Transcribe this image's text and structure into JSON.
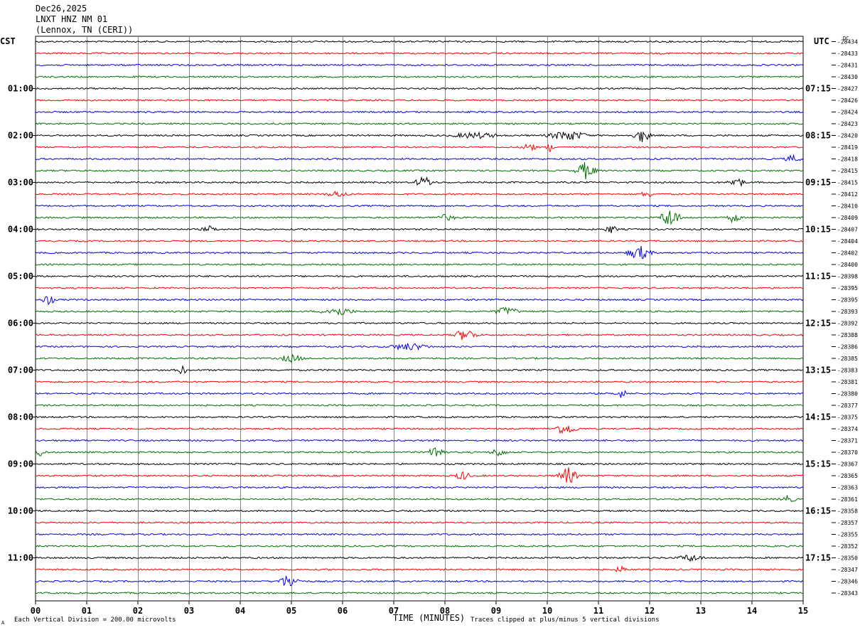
{
  "header": {
    "date": "Dec26,2025",
    "station": "LNXT HNZ NM 01",
    "location": "(Lennox, TN (CERI))"
  },
  "left_axis_label": "CST",
  "right_axis_label": "UTC",
  "dc_label": "DC",
  "footer": {
    "scale_note": "Each Vertical Division =  200.00 microvolts",
    "clip_note": "Traces clipped at plus/minus 5 vertical divisions",
    "corner_mark": "A"
  },
  "colors": {
    "trace_cycle": [
      "#000000",
      "#ff0000",
      "#0000ff",
      "#007000"
    ],
    "grid": "#888888",
    "frame": "#000000"
  },
  "chart_data": {
    "type": "line",
    "title": "LNXT HNZ NM 01",
    "xlabel": "TIME (MINUTES)",
    "xlim": [
      0,
      15
    ],
    "x_ticks": [
      "00",
      "01",
      "02",
      "03",
      "04",
      "05",
      "06",
      "07",
      "08",
      "09",
      "10",
      "11",
      "12",
      "13",
      "14",
      "15"
    ],
    "left_time_labels": [
      {
        "row": 4,
        "label": "01:00"
      },
      {
        "row": 8,
        "label": "02:00"
      },
      {
        "row": 12,
        "label": "03:00"
      },
      {
        "row": 16,
        "label": "04:00"
      },
      {
        "row": 20,
        "label": "05:00"
      },
      {
        "row": 24,
        "label": "06:00"
      },
      {
        "row": 28,
        "label": "07:00"
      },
      {
        "row": 32,
        "label": "08:00"
      },
      {
        "row": 36,
        "label": "09:00"
      },
      {
        "row": 40,
        "label": "10:00"
      },
      {
        "row": 44,
        "label": "11:00"
      }
    ],
    "right_time_labels": [
      {
        "row": 4,
        "label": "07:15"
      },
      {
        "row": 8,
        "label": "08:15"
      },
      {
        "row": 12,
        "label": "09:15"
      },
      {
        "row": 16,
        "label": "10:15"
      },
      {
        "row": 20,
        "label": "11:15"
      },
      {
        "row": 24,
        "label": "12:15"
      },
      {
        "row": 28,
        "label": "13:15"
      },
      {
        "row": 32,
        "label": "14:15"
      },
      {
        "row": 36,
        "label": "15:15"
      },
      {
        "row": 40,
        "label": "16:15"
      },
      {
        "row": 44,
        "label": "17:15"
      }
    ],
    "dc_offsets": [
      "-28434",
      "-28433",
      "-28431",
      "-28430",
      "-28427",
      "-28426",
      "-28424",
      "-28423",
      "-28420",
      "-28419",
      "-28418",
      "-28415",
      "-28415",
      "-28412",
      "-28410",
      "-28409",
      "-28407",
      "-28404",
      "-28402",
      "-28400",
      "-28398",
      "-28395",
      "-28395",
      "-28393",
      "-28392",
      "-28388",
      "-28386",
      "-28385",
      "-28383",
      "-28381",
      "-28380",
      "-28377",
      "-28375",
      "-28374",
      "-28371",
      "-28370",
      "-28367",
      "-28365",
      "-28363",
      "-28361",
      "-28358",
      "-28357",
      "-28355",
      "-28352",
      "-28350",
      "-28347",
      "-28346",
      "-28343"
    ],
    "events": [
      {
        "row": 8,
        "minute": 10.4,
        "amp": 7,
        "width": 0.5
      },
      {
        "row": 8,
        "minute": 11.85,
        "amp": 10,
        "width": 0.2
      },
      {
        "row": 8,
        "minute": 8.6,
        "amp": 4,
        "width": 0.6
      },
      {
        "row": 9,
        "minute": 9.65,
        "amp": 8,
        "width": 0.15
      },
      {
        "row": 9,
        "minute": 10.05,
        "amp": 6,
        "width": 0.1
      },
      {
        "row": 10,
        "minute": 14.8,
        "amp": 5,
        "width": 0.2
      },
      {
        "row": 11,
        "minute": 10.75,
        "amp": 12,
        "width": 0.25
      },
      {
        "row": 12,
        "minute": 7.6,
        "amp": 8,
        "width": 0.25
      },
      {
        "row": 12,
        "minute": 13.7,
        "amp": 8,
        "width": 0.2
      },
      {
        "row": 13,
        "minute": 5.9,
        "amp": 4,
        "width": 0.3
      },
      {
        "row": 13,
        "minute": 11.95,
        "amp": 5,
        "width": 0.15
      },
      {
        "row": 15,
        "minute": 12.4,
        "amp": 14,
        "width": 0.25
      },
      {
        "row": 15,
        "minute": 13.65,
        "amp": 8,
        "width": 0.15
      },
      {
        "row": 15,
        "minute": 8.0,
        "amp": 4,
        "width": 0.3
      },
      {
        "row": 16,
        "minute": 11.25,
        "amp": 6,
        "width": 0.15
      },
      {
        "row": 16,
        "minute": 3.4,
        "amp": 4,
        "width": 0.2
      },
      {
        "row": 18,
        "minute": 11.8,
        "amp": 10,
        "width": 0.3
      },
      {
        "row": 22,
        "minute": 0.25,
        "amp": 8,
        "width": 0.15
      },
      {
        "row": 23,
        "minute": 5.9,
        "amp": 6,
        "width": 0.4
      },
      {
        "row": 23,
        "minute": 9.2,
        "amp": 6,
        "width": 0.3
      },
      {
        "row": 25,
        "minute": 8.4,
        "amp": 8,
        "width": 0.3
      },
      {
        "row": 26,
        "minute": 7.3,
        "amp": 5,
        "width": 0.5
      },
      {
        "row": 27,
        "minute": 5.0,
        "amp": 5,
        "width": 0.3
      },
      {
        "row": 28,
        "minute": 2.85,
        "amp": 6,
        "width": 0.15
      },
      {
        "row": 30,
        "minute": 11.45,
        "amp": 6,
        "width": 0.15
      },
      {
        "row": 33,
        "minute": 10.35,
        "amp": 8,
        "width": 0.3
      },
      {
        "row": 35,
        "minute": 7.85,
        "amp": 11,
        "width": 0.2
      },
      {
        "row": 35,
        "minute": 9.05,
        "amp": 6,
        "width": 0.2
      },
      {
        "row": 35,
        "minute": 0.1,
        "amp": 6,
        "width": 0.15
      },
      {
        "row": 37,
        "minute": 10.4,
        "amp": 12,
        "width": 0.25
      },
      {
        "row": 37,
        "minute": 8.35,
        "amp": 6,
        "width": 0.2
      },
      {
        "row": 39,
        "minute": 14.7,
        "amp": 5,
        "width": 0.2
      },
      {
        "row": 44,
        "minute": 12.8,
        "amp": 5,
        "width": 0.3
      },
      {
        "row": 45,
        "minute": 11.45,
        "amp": 5,
        "width": 0.15
      },
      {
        "row": 46,
        "minute": 4.95,
        "amp": 10,
        "width": 0.25
      }
    ]
  }
}
